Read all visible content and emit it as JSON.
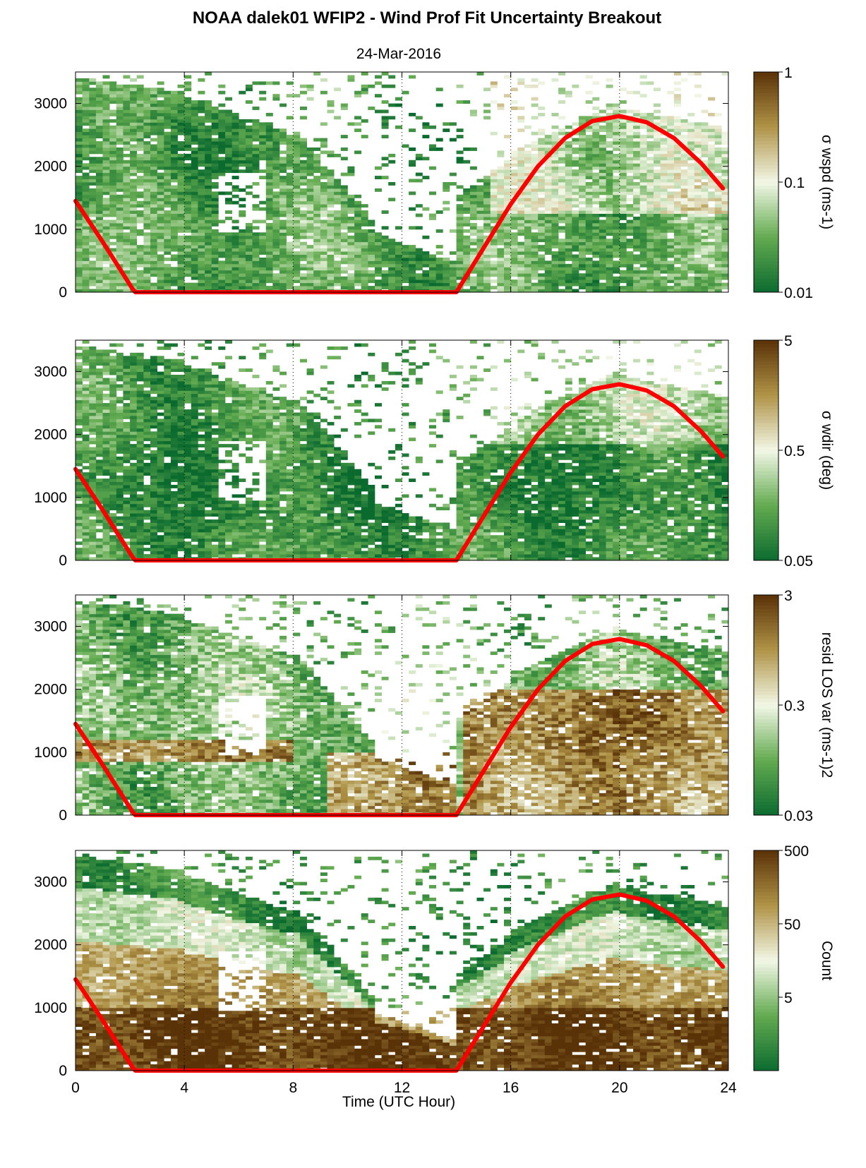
{
  "figure": {
    "title": "NOAA dalek01 WFIP2 - Wind Prof Fit Uncertainty Breakout",
    "subtitle": "24-Mar-2016",
    "xlabel": "Time (UTC Hour)"
  },
  "colors": {
    "low": "#0b6b2f",
    "mid": "#f2f7e6",
    "high": "#5a3207",
    "overlay": "#ff0000",
    "grid": "#000000"
  },
  "chart_data": [
    {
      "type": "heatmap",
      "panel": "sigma-wspd",
      "xlim": [
        0,
        24
      ],
      "ylim": [
        0,
        3500
      ],
      "xticks": [
        0,
        4,
        8,
        12,
        16,
        20,
        24
      ],
      "yticks": [
        0,
        1000,
        2000,
        3000
      ],
      "vertical_gridlines_at": [
        4,
        8,
        12,
        16,
        20
      ],
      "colorbar": {
        "label": "σ wspd (ms-1)",
        "scale": "log",
        "range": [
          0.01,
          1
        ],
        "ticks": [
          "1",
          "0.1",
          "0.01"
        ]
      },
      "overlay_line": {
        "color": "#ff0000",
        "x": [
          0,
          1,
          2.1,
          2.2,
          14,
          15,
          16,
          17,
          18,
          19,
          20,
          21,
          22,
          23,
          23.8
        ],
        "y": [
          1450,
          800,
          50,
          0,
          0,
          700,
          1400,
          2000,
          2450,
          2720,
          2800,
          2700,
          2450,
          2050,
          1650
        ]
      }
    },
    {
      "type": "heatmap",
      "panel": "sigma-wdir",
      "xlim": [
        0,
        24
      ],
      "ylim": [
        0,
        3500
      ],
      "xticks": [
        0,
        4,
        8,
        12,
        16,
        20,
        24
      ],
      "yticks": [
        0,
        1000,
        2000,
        3000
      ],
      "vertical_gridlines_at": [
        4,
        8,
        12,
        16,
        20
      ],
      "colorbar": {
        "label": "σ wdir (deg)",
        "scale": "log",
        "range": [
          0.05,
          5
        ],
        "ticks": [
          "5",
          "0.5",
          "0.05"
        ]
      },
      "overlay_line": {
        "color": "#ff0000",
        "x": [
          0,
          1,
          2.1,
          2.2,
          14,
          15,
          16,
          17,
          18,
          19,
          20,
          21,
          22,
          23,
          23.8
        ],
        "y": [
          1450,
          800,
          50,
          0,
          0,
          700,
          1400,
          2000,
          2450,
          2720,
          2800,
          2700,
          2450,
          2050,
          1650
        ]
      }
    },
    {
      "type": "heatmap",
      "panel": "resid-los-var",
      "xlim": [
        0,
        24
      ],
      "ylim": [
        0,
        3500
      ],
      "xticks": [
        0,
        4,
        8,
        12,
        16,
        20,
        24
      ],
      "yticks": [
        0,
        1000,
        2000,
        3000
      ],
      "vertical_gridlines_at": [
        4,
        8,
        12,
        16,
        20
      ],
      "colorbar": {
        "label": "resid LOS var (ms-1)2",
        "scale": "log",
        "range": [
          0.03,
          3
        ],
        "ticks": [
          "3",
          "0.3",
          "0.03"
        ]
      },
      "overlay_line": {
        "color": "#ff0000",
        "x": [
          0,
          1,
          2.1,
          2.2,
          14,
          15,
          16,
          17,
          18,
          19,
          20,
          21,
          22,
          23,
          23.8
        ],
        "y": [
          1450,
          800,
          50,
          0,
          0,
          700,
          1400,
          2000,
          2450,
          2720,
          2800,
          2700,
          2450,
          2050,
          1650
        ]
      }
    },
    {
      "type": "heatmap",
      "panel": "count",
      "xlim": [
        0,
        24
      ],
      "ylim": [
        0,
        3500
      ],
      "xticks": [
        0,
        4,
        8,
        12,
        16,
        20,
        24
      ],
      "yticks": [
        0,
        1000,
        2000,
        3000
      ],
      "vertical_gridlines_at": [
        4,
        8,
        12,
        16,
        20
      ],
      "colorbar": {
        "label": "Count",
        "scale": "log",
        "range": [
          0.5,
          500
        ],
        "ticks": [
          "500",
          "50",
          "5"
        ]
      },
      "overlay_line": {
        "color": "#ff0000",
        "x": [
          0,
          1,
          2.1,
          2.2,
          14,
          15,
          16,
          17,
          18,
          19,
          20,
          21,
          22,
          23,
          23.8
        ],
        "y": [
          1450,
          800,
          50,
          0,
          0,
          700,
          1400,
          2000,
          2450,
          2720,
          2800,
          2700,
          2450,
          2050,
          1650
        ]
      }
    }
  ]
}
